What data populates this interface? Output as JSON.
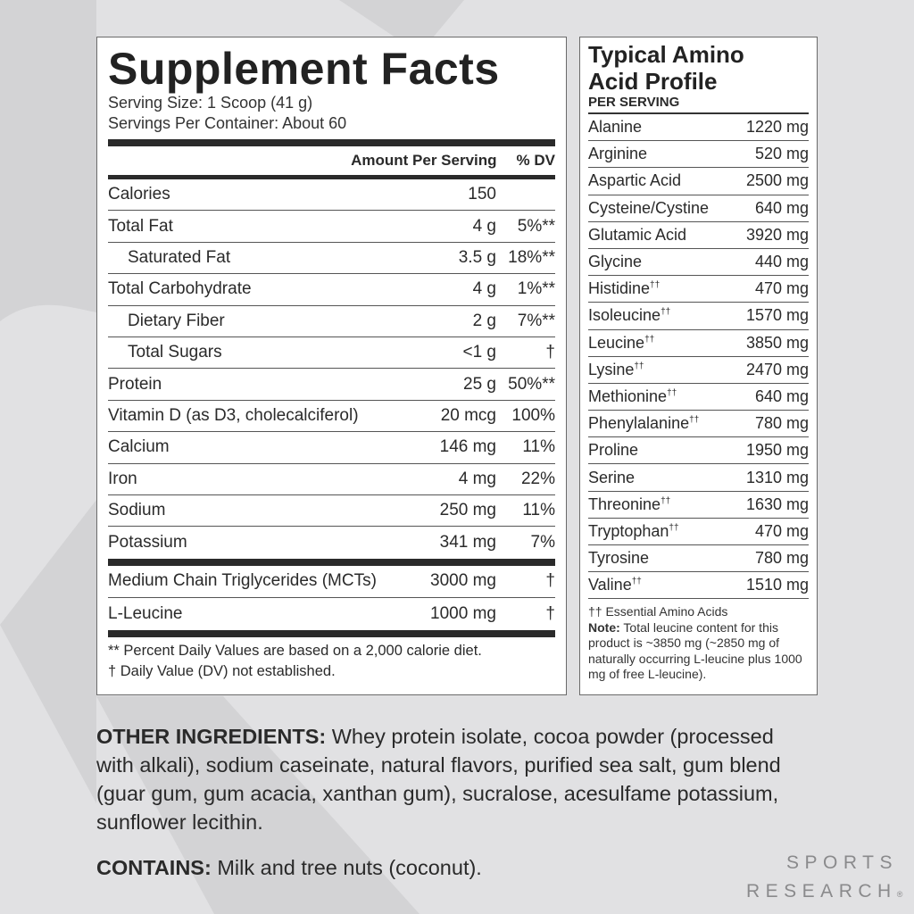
{
  "supplement_facts": {
    "title": "Supplement Facts",
    "serving_size": "Serving Size: 1 Scoop (41 g)",
    "servings_per_container": "Servings Per Container: About 60",
    "col_amount": "Amount Per Serving",
    "col_dv": "% DV",
    "rows": [
      {
        "name": "Calories",
        "amount": "150",
        "dv": "",
        "indent": false
      },
      {
        "name": "Total Fat",
        "amount": "4 g",
        "dv": "5%**",
        "indent": false
      },
      {
        "name": "Saturated Fat",
        "amount": "3.5 g",
        "dv": "18%**",
        "indent": true
      },
      {
        "name": "Total Carbohydrate",
        "amount": "4 g",
        "dv": "1%**",
        "indent": false
      },
      {
        "name": "Dietary Fiber",
        "amount": "2 g",
        "dv": "7%**",
        "indent": true
      },
      {
        "name": "Total Sugars",
        "amount": "<1 g",
        "dv": "†",
        "indent": true
      },
      {
        "name": "Protein",
        "amount": "25 g",
        "dv": "50%**",
        "indent": false
      },
      {
        "name": "Vitamin D (as D3, cholecalciferol)",
        "amount": "20 mcg",
        "dv": "100%",
        "indent": false
      },
      {
        "name": "Calcium",
        "amount": "146 mg",
        "dv": "11%",
        "indent": false
      },
      {
        "name": "Iron",
        "amount": "4 mg",
        "dv": "22%",
        "indent": false
      },
      {
        "name": "Sodium",
        "amount": "250 mg",
        "dv": "11%",
        "indent": false
      },
      {
        "name": "Potassium",
        "amount": "341 mg",
        "dv": "7%",
        "indent": false
      }
    ],
    "other_rows": [
      {
        "name": "Medium Chain Triglycerides (MCTs)",
        "amount": "3000 mg",
        "dv": "†"
      },
      {
        "name": "L-Leucine",
        "amount": "1000 mg",
        "dv": "†"
      }
    ],
    "footnote_1": "** Percent Daily Values are based on a 2,000 calorie diet.",
    "footnote_2": "† Daily Value (DV) not established."
  },
  "amino_profile": {
    "title_line1": "Typical Amino",
    "title_line2": "Acid Profile",
    "subtitle": "PER SERVING",
    "rows": [
      {
        "name": "Alanine",
        "mark": "",
        "amount": "1220 mg"
      },
      {
        "name": "Arginine",
        "mark": "",
        "amount": "520 mg"
      },
      {
        "name": "Aspartic Acid",
        "mark": "",
        "amount": "2500 mg"
      },
      {
        "name": "Cysteine/Cystine",
        "mark": "",
        "amount": "640 mg"
      },
      {
        "name": "Glutamic Acid",
        "mark": "",
        "amount": "3920 mg"
      },
      {
        "name": "Glycine",
        "mark": "",
        "amount": "440 mg"
      },
      {
        "name": "Histidine",
        "mark": "††",
        "amount": "470 mg"
      },
      {
        "name": "Isoleucine",
        "mark": "††",
        "amount": "1570 mg"
      },
      {
        "name": "Leucine",
        "mark": "††",
        "amount": "3850 mg"
      },
      {
        "name": "Lysine",
        "mark": "††",
        "amount": "2470 mg"
      },
      {
        "name": "Methionine",
        "mark": "††",
        "amount": "640 mg"
      },
      {
        "name": "Phenylalanine",
        "mark": "††",
        "amount": "780 mg"
      },
      {
        "name": "Proline",
        "mark": "",
        "amount": "1950 mg"
      },
      {
        "name": "Serine",
        "mark": "",
        "amount": "1310 mg"
      },
      {
        "name": "Threonine",
        "mark": "††",
        "amount": "1630 mg"
      },
      {
        "name": "Tryptophan",
        "mark": "††",
        "amount": "470 mg"
      },
      {
        "name": "Tyrosine",
        "mark": "",
        "amount": "780 mg"
      },
      {
        "name": "Valine",
        "mark": "††",
        "amount": "1510 mg"
      }
    ],
    "essential_note": "†† Essential Amino Acids",
    "note_label": "Note:",
    "note_text": " Total leucine content for this product is ~3850 mg (~2850 mg of naturally occurring L-leucine plus 1000 mg of free L-leucine)."
  },
  "other_ingredients": {
    "label": "OTHER INGREDIENTS:",
    "text": " Whey protein isolate, cocoa powder (processed with alkali), sodium caseinate, natural flavors, purified sea salt, gum blend (guar gum, gum acacia, xanthan gum), sucralose, acesulfame potassium, sunflower lecithin."
  },
  "contains": {
    "label": "CONTAINS:",
    "text": " Milk and tree nuts (coconut)."
  },
  "brand": {
    "line1": "SPORTS",
    "line2": "RESEARCH",
    "mark": "®"
  },
  "colors": {
    "background": "#e1e1e3",
    "watermark": "#d3d3d5",
    "text": "#2a2a2a",
    "brand": "#8a8a8c"
  }
}
